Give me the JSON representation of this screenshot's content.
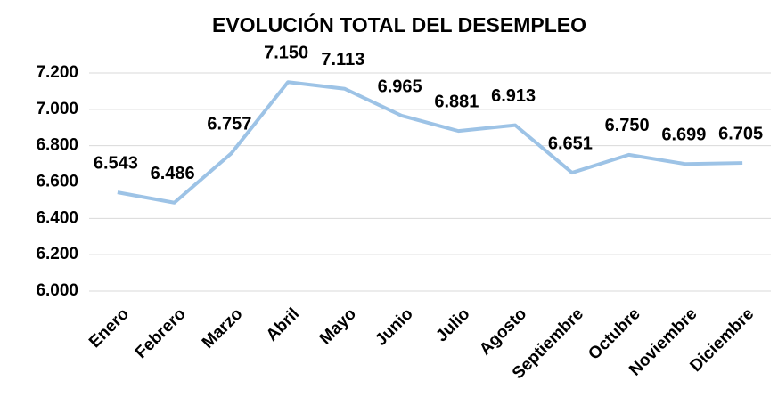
{
  "chart_data": {
    "type": "line",
    "title": "EVOLUCIÓN TOTAL DEL DESEMPLEO",
    "categories": [
      "Enero",
      "Febrero",
      "Marzo",
      "Abril",
      "Mayo",
      "Junio",
      "Julio",
      "Agosto",
      "Septiembre",
      "Octubre",
      "Noviembre",
      "Diciembre"
    ],
    "series": [
      {
        "name": "Desempleo",
        "color": "#9dc3e6",
        "values": [
          6543,
          6486,
          6757,
          7150,
          7113,
          6965,
          6881,
          6913,
          6651,
          6750,
          6699,
          6705
        ],
        "value_labels": [
          "6.543",
          "6.486",
          "6.757",
          "7.150",
          "7.113",
          "6.965",
          "6.881",
          "6.913",
          "6.651",
          "6.750",
          "6.699",
          "6.705"
        ]
      }
    ],
    "ylim": [
      6000,
      7200
    ],
    "yticks": [
      {
        "value": 6000,
        "label": "6.000"
      },
      {
        "value": 6200,
        "label": "6.200"
      },
      {
        "value": 6400,
        "label": "6.400"
      },
      {
        "value": 6600,
        "label": "6.600"
      },
      {
        "value": 6800,
        "label": "6.800"
      },
      {
        "value": 7000,
        "label": "7.000"
      },
      {
        "value": 7200,
        "label": "7.200"
      }
    ],
    "grid": true
  }
}
